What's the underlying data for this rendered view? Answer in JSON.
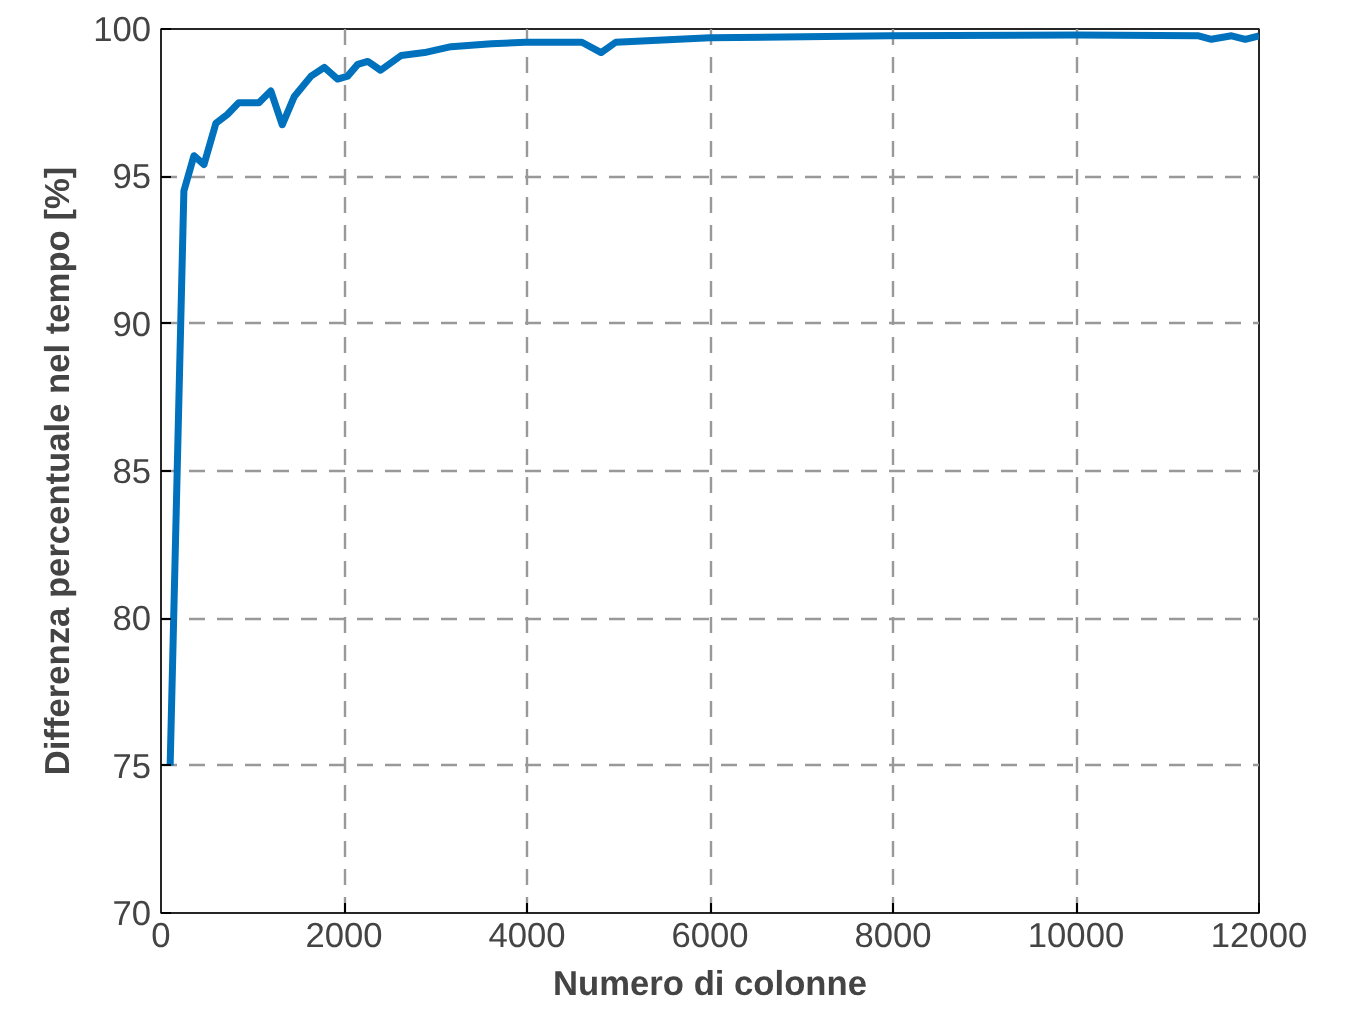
{
  "chart_data": {
    "type": "line",
    "xlabel": "Numero di colonne",
    "ylabel": "Differenza percentuale nel tempo [%]",
    "x": [
      100,
      250,
      360,
      470,
      600,
      725,
      850,
      1070,
      1200,
      1325,
      1455,
      1640,
      1785,
      1930,
      2040,
      2150,
      2260,
      2400,
      2625,
      2880,
      3170,
      3610,
      3980,
      4340,
      4600,
      4810,
      4970,
      6000,
      7960,
      10020,
      11340,
      11480,
      11700,
      11850,
      12000
    ],
    "series": [
      {
        "color": "#0072bd",
        "values": [
          75,
          94.5,
          95.7,
          95.4,
          96.8,
          97.1,
          97.5,
          97.5,
          97.9,
          96.75,
          97.7,
          98.4,
          98.7,
          98.3,
          98.4,
          98.8,
          98.9,
          98.6,
          99.1,
          99.2,
          99.4,
          99.5,
          99.55,
          99.55,
          99.55,
          99.2,
          99.55,
          99.7,
          99.77,
          99.8,
          99.77,
          99.65,
          99.77,
          99.65,
          99.77
        ]
      }
    ],
    "xlim": [
      0,
      12000
    ],
    "xticks": [
      0,
      2000,
      4000,
      6000,
      8000,
      10000,
      12000
    ],
    "ylim": [
      70,
      100
    ],
    "yticks": [
      70,
      75,
      80,
      85,
      90,
      95,
      100
    ],
    "grid": true,
    "marker": "none",
    "line_style": "solid"
  }
}
